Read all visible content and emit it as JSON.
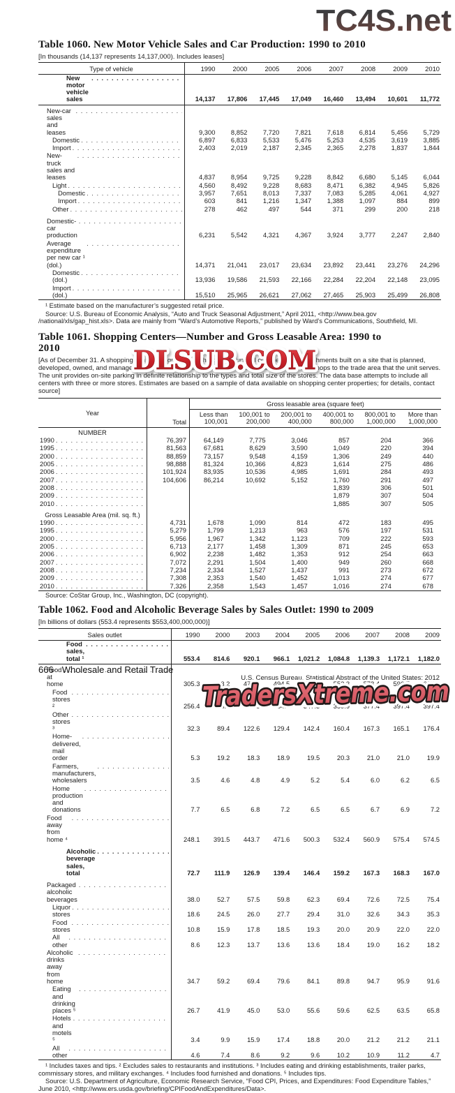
{
  "watermarks": {
    "top_text": "TC4S.net",
    "middle_text": "DLSUB.COM",
    "bottom_text": "TradersXtreme.com",
    "top_color_top": "#3d3d3f",
    "top_color_bottom": "#74463f",
    "middle_fill_top": "#e23f44",
    "middle_fill_bottom": "#9e1a20",
    "middle_outline": "#ffffff",
    "bottom_fill": "#e0606a",
    "bottom_outline": "#231a1a",
    "bottom_glow": "#ffffff"
  },
  "table1060": {
    "title": "Table 1060. New Motor Vehicle Sales and Car Production: 1990 to 2010",
    "note": "[In thousands (14,137 represents 14,137,000). Includes leases]",
    "stub_header": "Type of vehicle",
    "years": [
      "1990",
      "2000",
      "2005",
      "2006",
      "2007",
      "2008",
      "2009",
      "2010"
    ],
    "rows": [
      {
        "label": "New motor vehicle sales",
        "indent": "b",
        "bold": true,
        "rule": true,
        "values": [
          "14,137",
          "17,806",
          "17,445",
          "17,049",
          "16,460",
          "13,494",
          "10,601",
          "11,772"
        ]
      },
      {
        "label": "New-car sales and leases",
        "indent": 0,
        "values": [
          "9,300",
          "8,852",
          "7,720",
          "7,821",
          "7,618",
          "6,814",
          "5,456",
          "5,729"
        ]
      },
      {
        "label": "Domestic",
        "indent": 1,
        "values": [
          "6,897",
          "6,833",
          "5,533",
          "5,476",
          "5,253",
          "4,535",
          "3,619",
          "3,885"
        ]
      },
      {
        "label": "Import",
        "indent": 1,
        "values": [
          "2,403",
          "2,019",
          "2,187",
          "2,345",
          "2,365",
          "2,278",
          "1,837",
          "1,844"
        ]
      },
      {
        "label": "New-truck sales and leases",
        "indent": 0,
        "values": [
          "4,837",
          "8,954",
          "9,725",
          "9,228",
          "8,842",
          "6,680",
          "5,145",
          "6,044"
        ]
      },
      {
        "label": "Light",
        "indent": 1,
        "values": [
          "4,560",
          "8,492",
          "9,228",
          "8,683",
          "8,471",
          "6,382",
          "4,945",
          "5,826"
        ]
      },
      {
        "label": "Domestic",
        "indent": 2,
        "values": [
          "3,957",
          "7,651",
          "8,013",
          "7,337",
          "7,083",
          "5,285",
          "4,061",
          "4,927"
        ]
      },
      {
        "label": "Import",
        "indent": 2,
        "values": [
          "603",
          "841",
          "1,216",
          "1,347",
          "1,388",
          "1,097",
          "884",
          "899"
        ]
      },
      {
        "label": "Other",
        "indent": 1,
        "values": [
          "278",
          "462",
          "497",
          "544",
          "371",
          "299",
          "200",
          "218"
        ]
      },
      {
        "label": "Domestic-car production",
        "indent": 0,
        "gap": true,
        "values": [
          "6,231",
          "5,542",
          "4,321",
          "4,367",
          "3,924",
          "3,777",
          "2,247",
          "2,840"
        ]
      },
      {
        "label": "Average expenditure per new car ¹ (dol.)",
        "indent": 0,
        "values": [
          "14,371",
          "21,041",
          "23,017",
          "23,634",
          "23,892",
          "23,441",
          "23,276",
          "24,296"
        ]
      },
      {
        "label": "Domestic (dol.)",
        "indent": 1,
        "values": [
          "13,936",
          "19,586",
          "21,593",
          "22,166",
          "22,284",
          "22,204",
          "22,148",
          "23,095"
        ]
      },
      {
        "label": "Import (dol.)",
        "indent": 1,
        "values": [
          "15,510",
          "25,965",
          "26,621",
          "27,062",
          "27,465",
          "25,903",
          "25,499",
          "26,808"
        ]
      }
    ],
    "footnote": "¹ Estimate based on the manufacturer’s suggested retail price.",
    "source": "Source: U.S. Bureau of Economic Analysis, “Auto and Truck Seasonal Adjustment,” April 2011, <http://www.bea.gov /national/xls/gap_hist.xls>. Data are mainly from “Ward’s Automotive Reports,” published by Ward’s Communications, Southfield, MI."
  },
  "table1061": {
    "title": "Table 1061. Shopping Centers—Number and Gross Leasable Area: 1990 to 2010",
    "note": "[As of December 31. A shopping center is a group of architecturally unified commercial establishments built on a site that is planned, developed, owned, and managed as an operating unit related in its location, size, and type of shops to the trade area that the unit serves. The unit provides on-site parking in definite relationship to the types and total size of the stores. The data base attempts to include all centers with three or more stores. Estimates are based on a sample of data available on shopping center properties; for details, contact source]",
    "year_header": "Year",
    "total_header": "Total",
    "spanner": "Gross leasable area (square feet)",
    "col_headers": [
      {
        "line1": "Less than",
        "line2": "100,001"
      },
      {
        "line1": "100,001 to",
        "line2": "200,000"
      },
      {
        "line1": "200,001 to",
        "line2": "400,000"
      },
      {
        "line1": "400,001 to",
        "line2": "800,000"
      },
      {
        "line1": "800,001 to",
        "line2": "1,000,000"
      },
      {
        "line1": "More than",
        "line2": "1,000,000"
      }
    ],
    "sections": [
      {
        "heading": "NUMBER",
        "rows": [
          [
            "1990",
            "76,397",
            "64,149",
            "7,775",
            "3,046",
            "857",
            "204",
            "366"
          ],
          [
            "1995",
            "81,563",
            "67,681",
            "8,629",
            "3,590",
            "1,049",
            "220",
            "394"
          ],
          [
            "2000",
            "88,859",
            "73,157",
            "9,548",
            "4,159",
            "1,306",
            "249",
            "440"
          ],
          [
            "2005",
            "98,888",
            "81,324",
            "10,366",
            "4,823",
            "1,614",
            "275",
            "486"
          ],
          [
            "2006",
            "101,924",
            "83,935",
            "10,536",
            "4,985",
            "1,691",
            "284",
            "493"
          ],
          [
            "2007",
            "104,606",
            "86,214",
            "10,692",
            "5,152",
            "1,760",
            "291",
            "497"
          ],
          [
            "2008",
            "",
            "",
            "",
            "",
            "1,839",
            "306",
            "501"
          ],
          [
            "2009",
            "",
            "",
            "",
            "",
            "1,879",
            "307",
            "504"
          ],
          [
            "2010",
            "",
            "",
            "",
            "",
            "1,885",
            "307",
            "505"
          ]
        ]
      },
      {
        "heading": "Gross Leasable Area (mil. sq. ft.)",
        "rows": [
          [
            "1990",
            "4,731",
            "1,678",
            "1,090",
            "814",
            "472",
            "183",
            "495"
          ],
          [
            "1995",
            "5,279",
            "1,799",
            "1,213",
            "963",
            "576",
            "197",
            "531"
          ],
          [
            "2000",
            "5,956",
            "1,967",
            "1,342",
            "1,123",
            "709",
            "222",
            "593"
          ],
          [
            "2005",
            "6,713",
            "2,177",
            "1,458",
            "1,309",
            "871",
            "245",
            "653"
          ],
          [
            "2006",
            "6,902",
            "2,238",
            "1,482",
            "1,353",
            "912",
            "254",
            "663"
          ],
          [
            "2007",
            "7,072",
            "2,291",
            "1,504",
            "1,400",
            "949",
            "260",
            "668"
          ],
          [
            "2008",
            "7,234",
            "2,334",
            "1,527",
            "1,437",
            "991",
            "273",
            "672"
          ],
          [
            "2009",
            "7,308",
            "2,353",
            "1,540",
            "1,452",
            "1,013",
            "274",
            "677"
          ],
          [
            "2010",
            "7,326",
            "2,358",
            "1,543",
            "1,457",
            "1,016",
            "274",
            "678"
          ]
        ]
      }
    ],
    "source": "Source: CoStar Group, Inc., Washington, DC (copyright)."
  },
  "table1062": {
    "title": "Table 1062. Food and Alcoholic Beverage Sales by Sales Outlet: 1990 to 2009",
    "note": "[In billions of dollars (553.4 represents $553,400,000,000)]",
    "stub_header": "Sales outlet",
    "years": [
      "1990",
      "2000",
      "2003",
      "2004",
      "2005",
      "2006",
      "2007",
      "2008",
      "2009"
    ],
    "rows": [
      {
        "label": "Food sales, total ¹",
        "indent": "b",
        "bold": true,
        "rule": true,
        "values": [
          "553.4",
          "814.6",
          "920.1",
          "966.1",
          "1,021.2",
          "1,084.8",
          "1,139.3",
          "1,172.1",
          "1,182.0"
        ]
      },
      {
        "label": "Food at home",
        "indent": 0,
        "values": [
          "305.3",
          "423.2",
          "476.4",
          "494.5",
          "520.9",
          "552.3",
          "578.4",
          "596.7",
          "607.4"
        ]
      },
      {
        "label": "Food stores ²",
        "indent": 1,
        "values": [
          "256.4",
          "303.5",
          "323.8",
          "334.0",
          "347.3",
          "359.9",
          "377.4",
          "397.4",
          "397.4"
        ]
      },
      {
        "label": "Other stores ³",
        "indent": 1,
        "values": [
          "32.3",
          "89.4",
          "122.6",
          "129.4",
          "142.4",
          "160.4",
          "167.3",
          "165.1",
          "176.4"
        ]
      },
      {
        "label": "Home-delivered, mail order",
        "indent": 1,
        "values": [
          "5.3",
          "19.2",
          "18.3",
          "18.9",
          "19.5",
          "20.3",
          "21.0",
          "21.0",
          "19.9"
        ]
      },
      {
        "label": "Farmers, manufacturers, wholesalers",
        "indent": 1,
        "values": [
          "3.5",
          "4.6",
          "4.8",
          "4.9",
          "5.2",
          "5.4",
          "6.0",
          "6.2",
          "6.5"
        ]
      },
      {
        "label": "Home production and donations",
        "indent": 1,
        "values": [
          "7.7",
          "6.5",
          "6.8",
          "7.2",
          "6.5",
          "6.5",
          "6.7",
          "6.9",
          "7.2"
        ]
      },
      {
        "label": "Food away from home ⁴",
        "indent": 0,
        "values": [
          "248.1",
          "391.5",
          "443.7",
          "471.6",
          "500.3",
          "532.4",
          "560.9",
          "575.4",
          "574.5"
        ]
      },
      {
        "label": "Alcoholic beverage sales, total",
        "indent": "b",
        "bold": true,
        "gap": true,
        "values": [
          "72.7",
          "111.9",
          "126.9",
          "139.4",
          "146.4",
          "159.2",
          "167.3",
          "168.3",
          "167.0"
        ]
      },
      {
        "label": "Packaged alcoholic beverages",
        "indent": 0,
        "gap": true,
        "values": [
          "38.0",
          "52.7",
          "57.5",
          "59.8",
          "62.3",
          "69.4",
          "72.6",
          "72.5",
          "75.4"
        ]
      },
      {
        "label": "Liquor stores",
        "indent": 1,
        "values": [
          "18.6",
          "24.5",
          "26.0",
          "27.7",
          "29.4",
          "31.0",
          "32.6",
          "34.3",
          "35.3"
        ]
      },
      {
        "label": "Food stores",
        "indent": 1,
        "values": [
          "10.8",
          "15.9",
          "17.8",
          "18.5",
          "19.3",
          "20.0",
          "20.9",
          "22.0",
          "22.0"
        ]
      },
      {
        "label": "All other",
        "indent": 1,
        "values": [
          "8.6",
          "12.3",
          "13.7",
          "13.6",
          "13.6",
          "18.4",
          "19.0",
          "16.2",
          "18.2"
        ]
      },
      {
        "label": "Alcoholic drinks away from home",
        "indent": 0,
        "values": [
          "34.7",
          "59.2",
          "69.4",
          "79.6",
          "84.1",
          "89.8",
          "94.7",
          "95.9",
          "91.6"
        ]
      },
      {
        "label": "Eating and drinking places ⁵",
        "indent": 1,
        "values": [
          "26.7",
          "41.9",
          "45.0",
          "53.0",
          "55.6",
          "59.6",
          "62.5",
          "63.5",
          "65.8"
        ]
      },
      {
        "label": "Hotels and motels ⁵",
        "indent": 1,
        "values": [
          "3.4",
          "9.9",
          "15.9",
          "17.4",
          "18.8",
          "20.0",
          "21.2",
          "21.2",
          "21.1"
        ]
      },
      {
        "label": "All other",
        "indent": 1,
        "values": [
          "4.6",
          "7.4",
          "8.6",
          "9.2",
          "9.6",
          "10.2",
          "10.9",
          "11.2",
          "4.7"
        ]
      }
    ],
    "footnote": "¹ Includes taxes and tips. ² Excludes sales to restaurants and institutions. ³ Includes eating and drinking establishments, trailer parks, commissary stores, and military exchanges. ⁴ Includes food furnished and donations. ⁵ Includes tips.",
    "source": "Source: U.S. Department of Agriculture, Economic Research Service, “Food CPI, Prices, and Expenditures: Food Expenditure Tables,” June 2010, <http://www.ers.usda.gov/briefing/CPIFoodAndExpenditures/Data>."
  },
  "footer": {
    "page_number": "666",
    "section_title": "Wholesale and Retail Trade",
    "credit": "U.S. Census Bureau, Statistical Abstract of the United States: 2012"
  }
}
